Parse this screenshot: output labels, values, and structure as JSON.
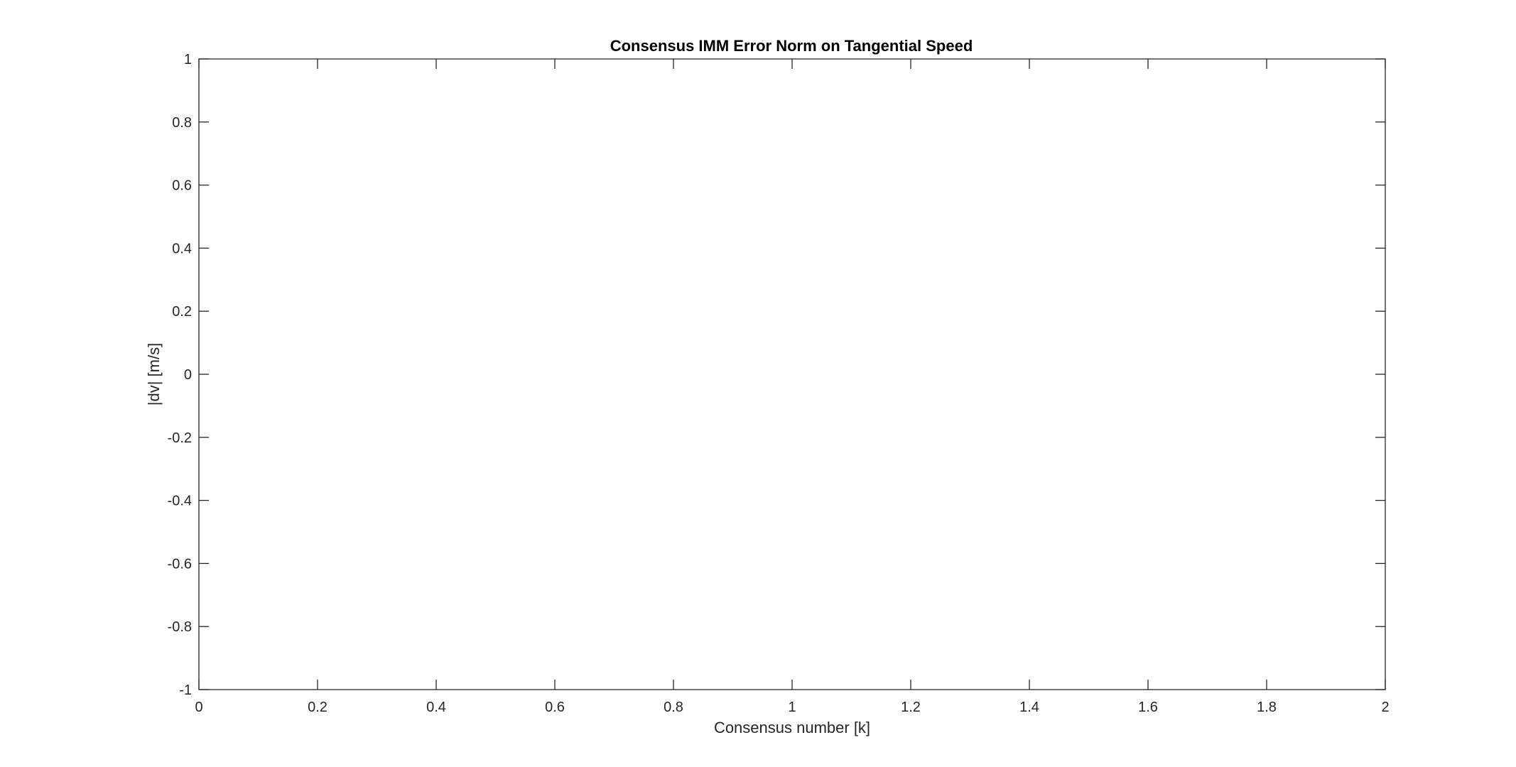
{
  "chart_data": {
    "type": "line",
    "title": "Consensus IMM Error Norm on Tangential Speed",
    "xlabel": "Consensus number [k]",
    "ylabel": "|dv| [m/s]",
    "xlim": [
      0,
      2
    ],
    "ylim": [
      -1,
      1
    ],
    "x_ticks": [
      "0",
      "0.2",
      "0.4",
      "0.6",
      "0.8",
      "1",
      "1.2",
      "1.4",
      "1.6",
      "1.8",
      "2"
    ],
    "y_ticks": [
      "-1",
      "-0.8",
      "-0.6",
      "-0.4",
      "-0.2",
      "0",
      "0.2",
      "0.4",
      "0.6",
      "0.8",
      "1"
    ],
    "grid": false,
    "box": true,
    "series": []
  },
  "colors": {
    "axis": "#262626",
    "background": "#ffffff"
  }
}
